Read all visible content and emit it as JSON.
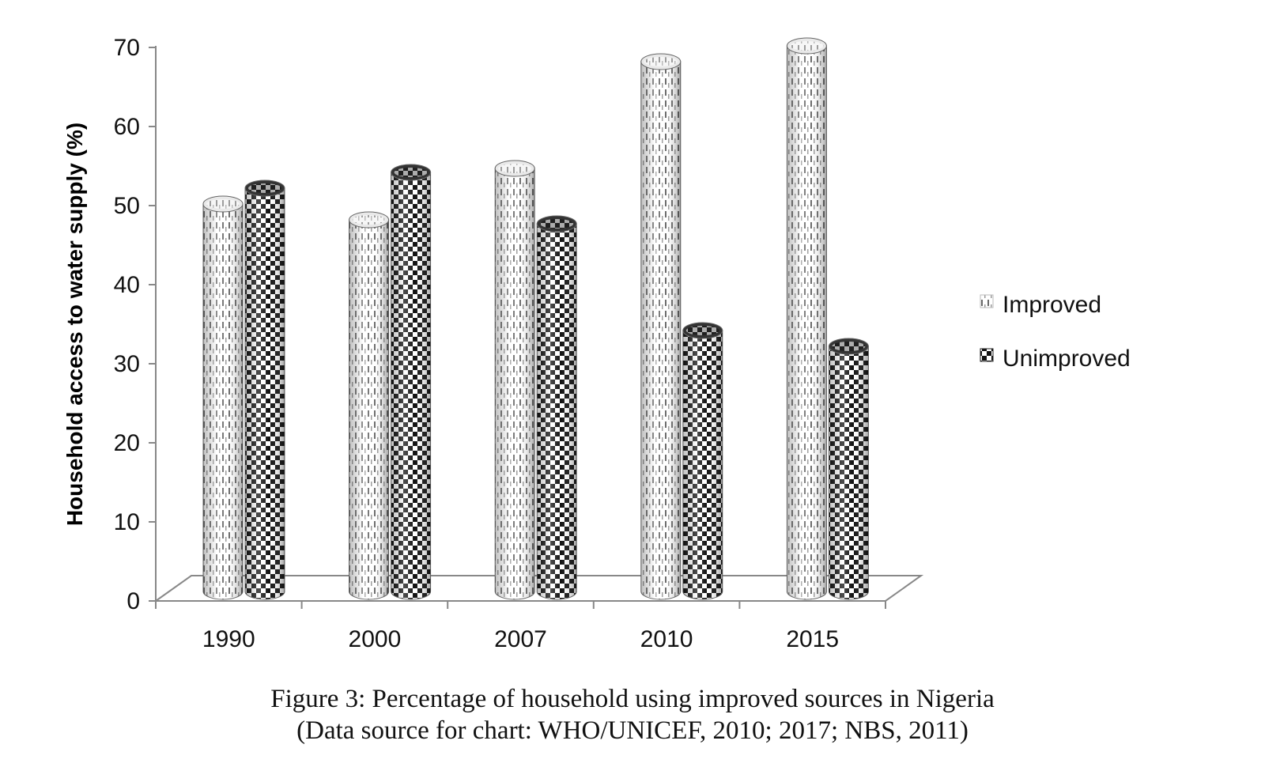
{
  "chart_data": {
    "type": "bar",
    "categories": [
      "1990",
      "2000",
      "2007",
      "2010",
      "2015"
    ],
    "series": [
      {
        "name": "Improved",
        "values": [
          50,
          48,
          54.5,
          68,
          70
        ],
        "pattern": "dashed-light"
      },
      {
        "name": "Unimproved",
        "values": [
          52,
          54,
          47.5,
          34,
          32
        ],
        "pattern": "checker-dark"
      }
    ],
    "ylabel": "Household access to water supply (%)",
    "xlabel": "",
    "ylim": [
      0,
      70
    ],
    "yticks": [
      0,
      10,
      20,
      30,
      40,
      50,
      60,
      70
    ],
    "style": "3d-cylinder",
    "legend_position": "right",
    "grid": false
  },
  "caption": {
    "line1": "Figure 3: Percentage of household using improved sources in Nigeria",
    "line2": "(Data source for chart: WHO/UNICEF, 2010; 2017; NBS, 2011)"
  },
  "colors": {
    "axis": "#888888",
    "improved_stripe": "#555555",
    "unimproved_dark": "#111111"
  }
}
